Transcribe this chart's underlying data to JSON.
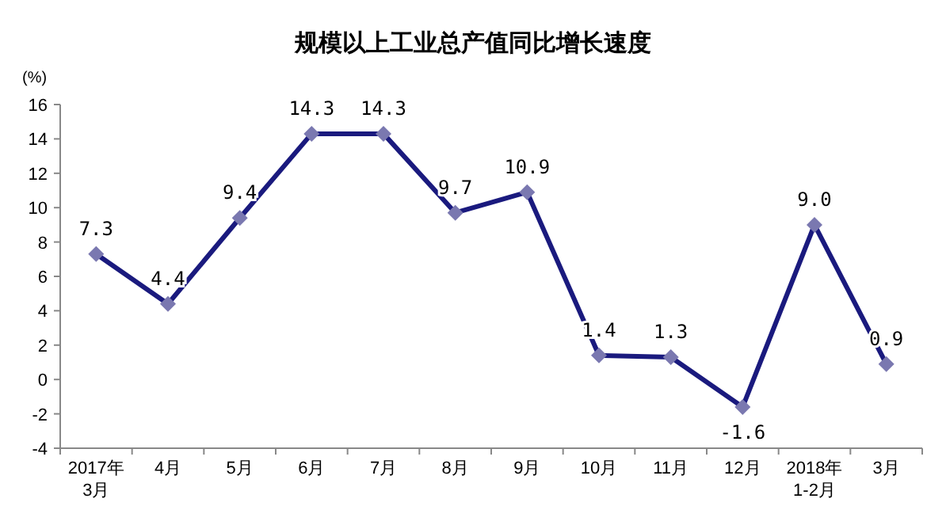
{
  "chart_data": {
    "type": "line",
    "title": "规模以上工业总产值同比增长速度",
    "ylabel": "(%)",
    "categories": [
      "2017年\n3月",
      "4月",
      "5月",
      "6月",
      "7月",
      "8月",
      "9月",
      "10月",
      "11月",
      "12月",
      "2018年\n1-2月",
      "3月"
    ],
    "series": [
      {
        "color": "#1a1a7e",
        "values": [
          7.3,
          4.4,
          9.4,
          14.3,
          14.3,
          9.7,
          10.9,
          1.4,
          1.3,
          -1.6,
          9.0,
          0.9
        ],
        "value_labels": [
          "7.3",
          "4.4",
          "9.4",
          "14.3",
          "14.3",
          "9.7",
          "10.9",
          "1.4",
          "1.3",
          "-1.6",
          "9.0",
          "0.9"
        ]
      }
    ],
    "ylim": [
      -4,
      16
    ],
    "yticks": [
      -4,
      -2,
      0,
      2,
      4,
      6,
      8,
      10,
      12,
      14,
      16
    ],
    "marker": "diamond",
    "line_style": "solid",
    "grid": false
  }
}
